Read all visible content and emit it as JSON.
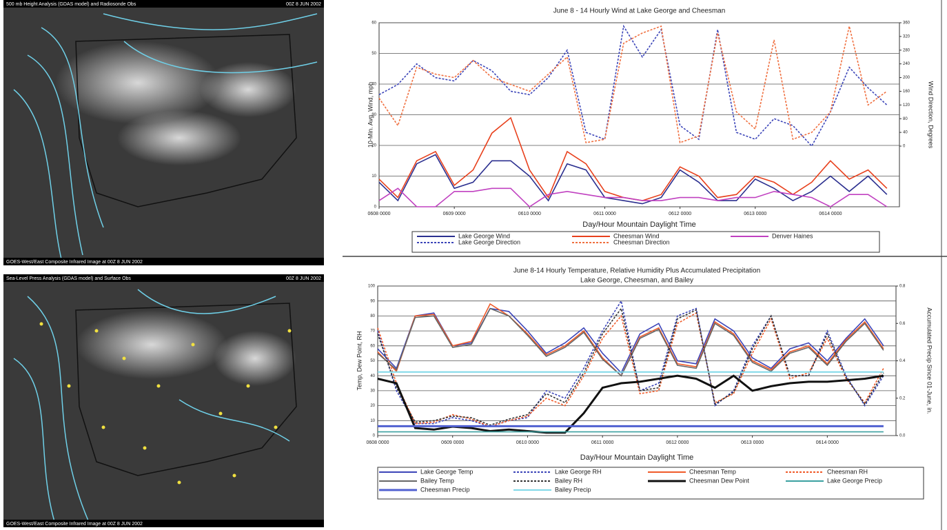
{
  "maps": [
    {
      "header_left": "500 mb Height Analysis (GDAS model) and Radiosonde Obs",
      "header_right": "00Z 8 JUN 2002",
      "footer_left": "GOES-West/East Composite Infrared Image at 00Z 8 JUN 2002"
    },
    {
      "header_left": "Sea-Level Press Analysis (GDAS model) and Surface Obs",
      "header_right": "00Z 8 JUN 2002",
      "footer_left": "GOES-West/East Composite Infrared Image at 00Z 8 JUN 2002"
    }
  ],
  "chart_data": [
    {
      "type": "line",
      "title": "June 8 - 14 Hourly Wind at Lake George and  Cheesman",
      "xlabel": "Day/Hour Mountain Daylight Time",
      "ylabel": "10-Min. Avg. Wind, mph",
      "y2label": "Wind Direction, Degrees",
      "x": [
        0,
        6,
        12,
        18,
        24,
        30,
        36,
        42,
        48,
        54,
        60,
        66,
        72,
        78,
        84,
        90,
        96,
        102,
        108,
        114,
        120,
        126,
        132,
        138,
        144,
        150,
        156,
        162
      ],
      "xlim": [
        0,
        166
      ],
      "xticks": [
        {
          "value": 0,
          "label": "0608 0000"
        },
        {
          "value": 24,
          "label": "0609 0000"
        },
        {
          "value": 48,
          "label": "0610 0000"
        },
        {
          "value": 72,
          "label": "0611 0000"
        },
        {
          "value": 96,
          "label": "0612 0000"
        },
        {
          "value": 120,
          "label": "0613 0000"
        },
        {
          "value": 144,
          "label": "0614 0000"
        }
      ],
      "ylim": [
        0,
        60
      ],
      "yticks": [
        0,
        10,
        20,
        30,
        40,
        50,
        60
      ],
      "y2lim": [
        -177,
        360
      ],
      "y2ticks": [
        0,
        40,
        80,
        120,
        160,
        200,
        240,
        280,
        320,
        360
      ],
      "grid": true,
      "series": [
        {
          "name": "Lake George Wind",
          "color": "#2b2f8f",
          "values": [
            8,
            2,
            14,
            17,
            6,
            8,
            15,
            15,
            10,
            2,
            14,
            12,
            3,
            2,
            1,
            3,
            12,
            8,
            2,
            2,
            9,
            6,
            2,
            5,
            10,
            5,
            10,
            4
          ]
        },
        {
          "name": "Cheesman Wind",
          "color": "#e8401c",
          "values": [
            9,
            3,
            15,
            18,
            7,
            12,
            24,
            29,
            12,
            3,
            18,
            14,
            5,
            3,
            2,
            4,
            13,
            10,
            3,
            4,
            10,
            8,
            4,
            8,
            15,
            9,
            12,
            6
          ]
        },
        {
          "name": "Denver Haines",
          "color": "#c040c0",
          "values": [
            2,
            6,
            0,
            0,
            5,
            5,
            6,
            6,
            0,
            4,
            5,
            4,
            3,
            3,
            2,
            2,
            3,
            3,
            2,
            3,
            3,
            5,
            4,
            3,
            0,
            4,
            4,
            0
          ]
        },
        {
          "name": "Lake George Direction",
          "color": "#3b44b8",
          "dash": true,
          "axis": "y2",
          "values": [
            150,
            180,
            240,
            200,
            190,
            250,
            220,
            160,
            150,
            200,
            280,
            40,
            20,
            350,
            260,
            340,
            60,
            20,
            340,
            40,
            20,
            80,
            60,
            0,
            100,
            230,
            170,
            120
          ]
        },
        {
          "name": "Cheesman Direction",
          "color": "#f07040",
          "dash": true,
          "axis": "y2",
          "values": [
            140,
            60,
            230,
            210,
            200,
            250,
            200,
            180,
            160,
            210,
            260,
            10,
            20,
            300,
            330,
            350,
            10,
            30,
            330,
            100,
            50,
            310,
            20,
            40,
            100,
            350,
            120,
            160
          ]
        }
      ]
    },
    {
      "type": "line",
      "title": "June 8-14 Hourly Temperature, Relative Humidity Plus Accumulated Precipitation",
      "subtitle": "Lake George, Cheesman, and Bailey",
      "xlabel": "Day/Hour Mountain Daylight Time",
      "ylabel": "Temp, Dew Point, RH",
      "y2label": "Accumulated Precip Since 01-June, in.",
      "x": [
        0,
        6,
        12,
        18,
        24,
        30,
        36,
        42,
        48,
        54,
        60,
        66,
        72,
        78,
        84,
        90,
        96,
        102,
        108,
        114,
        120,
        126,
        132,
        138,
        144,
        150,
        156,
        162
      ],
      "xlim": [
        0,
        166
      ],
      "xticks": [
        {
          "value": 0,
          "label": "0608 0000"
        },
        {
          "value": 24,
          "label": "0609 0000"
        },
        {
          "value": 48,
          "label": "0610 0000"
        },
        {
          "value": 72,
          "label": "0611 0000"
        },
        {
          "value": 96,
          "label": "0612 0000"
        },
        {
          "value": 120,
          "label": "0613 0000"
        },
        {
          "value": 144,
          "label": "0614 0000"
        }
      ],
      "ylim": [
        0,
        100
      ],
      "yticks": [
        0,
        10,
        20,
        30,
        40,
        50,
        60,
        70,
        80,
        90,
        100
      ],
      "y2lim": [
        0,
        0.8
      ],
      "y2ticks": [
        {
          "value": 0,
          "label": "0.0"
        },
        0.2,
        0.4,
        0.6,
        0.8
      ],
      "grid": true,
      "series": [
        {
          "name": "Lake George Temp",
          "color": "#3b44b8",
          "values": [
            58,
            45,
            80,
            82,
            60,
            62,
            85,
            83,
            70,
            55,
            62,
            72,
            55,
            42,
            68,
            75,
            50,
            48,
            78,
            70,
            52,
            45,
            58,
            62,
            50,
            65,
            78,
            60
          ]
        },
        {
          "name": "Lake George RH",
          "color": "#3b44b8",
          "dash": true,
          "values": [
            70,
            30,
            8,
            8,
            12,
            10,
            6,
            10,
            12,
            30,
            25,
            45,
            70,
            90,
            30,
            35,
            80,
            85,
            20,
            30,
            60,
            80,
            40,
            40,
            70,
            40,
            20,
            40
          ]
        },
        {
          "name": "Cheesman Temp",
          "color": "#f05a28",
          "values": [
            56,
            43,
            80,
            81,
            60,
            63,
            88,
            80,
            68,
            54,
            60,
            70,
            52,
            40,
            66,
            72,
            48,
            46,
            76,
            68,
            50,
            44,
            56,
            60,
            48,
            64,
            76,
            58
          ]
        },
        {
          "name": "Cheesman RH",
          "color": "#f05a28",
          "dash": true,
          "values": [
            72,
            35,
            8,
            9,
            14,
            11,
            6,
            10,
            13,
            25,
            20,
            40,
            65,
            80,
            28,
            30,
            75,
            82,
            22,
            28,
            55,
            78,
            38,
            42,
            65,
            38,
            22,
            45
          ]
        },
        {
          "name": "Bailey Temp",
          "color": "#666666",
          "values": [
            55,
            44,
            79,
            80,
            59,
            61,
            85,
            80,
            67,
            53,
            59,
            69,
            51,
            40,
            65,
            71,
            47,
            45,
            75,
            67,
            49,
            43,
            55,
            59,
            47,
            63,
            75,
            57
          ]
        },
        {
          "name": "Bailey RH",
          "color": "#333333",
          "dash": true,
          "values": [
            68,
            32,
            9,
            10,
            13,
            12,
            7,
            11,
            14,
            28,
            22,
            42,
            68,
            85,
            30,
            32,
            78,
            84,
            21,
            29,
            58,
            80,
            40,
            40,
            68,
            39,
            21,
            42
          ]
        },
        {
          "name": "Cheesman Dew Point",
          "color": "#111111",
          "width": 3,
          "values": [
            38,
            35,
            5,
            4,
            6,
            5,
            3,
            4,
            3,
            2,
            2,
            15,
            32,
            35,
            36,
            38,
            40,
            38,
            32,
            40,
            30,
            33,
            35,
            36,
            36,
            37,
            38,
            40
          ]
        },
        {
          "name": "Lake George Precip",
          "color": "#3aa0a0",
          "axis": "y2",
          "values": [
            0.02,
            0.02,
            0.02,
            0.02,
            0.02,
            0.02,
            0.02,
            0.02,
            0.02,
            0.02,
            0.02,
            0.02,
            0.02,
            0.02,
            0.02,
            0.02,
            0.02,
            0.02,
            0.02,
            0.02,
            0.02,
            0.02,
            0.02,
            0.02,
            0.02,
            0.02,
            0.02,
            0.02
          ]
        },
        {
          "name": "Cheesman Precip",
          "color": "#5060d0",
          "width": 3,
          "axis": "y2",
          "values": [
            0.05,
            0.05,
            0.05,
            0.05,
            0.05,
            0.05,
            0.05,
            0.05,
            0.05,
            0.05,
            0.05,
            0.05,
            0.05,
            0.05,
            0.05,
            0.05,
            0.05,
            0.05,
            0.05,
            0.05,
            0.05,
            0.05,
            0.05,
            0.05,
            0.05,
            0.05,
            0.05,
            0.05
          ]
        },
        {
          "name": "Bailey Precip",
          "color": "#7fd8e8",
          "width": 2,
          "axis": "y2",
          "values": [
            0.34,
            0.34,
            0.34,
            0.34,
            0.34,
            0.34,
            0.34,
            0.34,
            0.34,
            0.34,
            0.34,
            0.34,
            0.34,
            0.34,
            0.34,
            0.34,
            0.34,
            0.34,
            0.34,
            0.34,
            0.34,
            0.34,
            0.34,
            0.34,
            0.34,
            0.34,
            0.34,
            0.34
          ]
        }
      ]
    }
  ]
}
